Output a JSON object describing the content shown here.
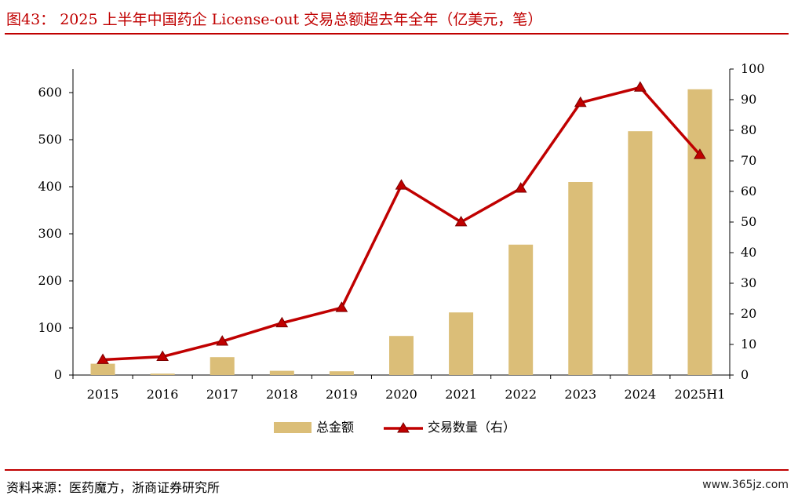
{
  "title": "图43：  2025 上半年中国药企 License-out 交易总额超去年全年（亿美元，笔）",
  "source": "资料来源：医药魔方，浙商证券研究所",
  "watermark": "www.365jz.com",
  "colors": {
    "bar": "#dbbe78",
    "line": "#c00000",
    "marker": "#c00000",
    "accent": "#c00000"
  },
  "chart_data": {
    "type": "bar",
    "categories": [
      "2015",
      "2016",
      "2017",
      "2018",
      "2019",
      "2020",
      "2021",
      "2022",
      "2023",
      "2024",
      "2025H1"
    ],
    "series": [
      {
        "name": "总金额",
        "type": "bar",
        "axis": "left",
        "values": [
          24,
          3,
          38,
          9,
          8,
          83,
          133,
          277,
          410,
          518,
          607
        ]
      },
      {
        "name": "交易数量（右）",
        "type": "line",
        "axis": "right",
        "values": [
          5,
          6,
          11,
          17,
          22,
          62,
          50,
          61,
          89,
          94,
          72
        ]
      }
    ],
    "yleft": {
      "min": 0,
      "max": 650,
      "ticks": [
        0,
        100,
        200,
        300,
        400,
        500,
        600
      ]
    },
    "yright": {
      "min": 0,
      "max": 100,
      "ticks": [
        0,
        10,
        20,
        30,
        40,
        50,
        60,
        70,
        80,
        90,
        100
      ]
    },
    "legend_position": "bottom-center",
    "grid": false
  }
}
